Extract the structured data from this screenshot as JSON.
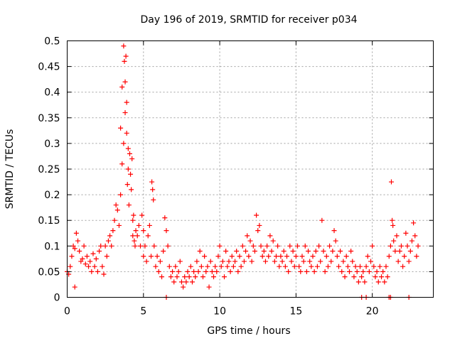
{
  "chart_data": {
    "type": "scatter",
    "title": "Day 196 of 2019, SRMTID for receiver p034",
    "xlabel": "GPS time / hours",
    "ylabel": "SRMTID / TECUs",
    "xlim": [
      0,
      24
    ],
    "ylim": [
      0,
      0.5
    ],
    "x_ticks": [
      0,
      5,
      10,
      15,
      20
    ],
    "x_tick_labels": [
      "0",
      "5",
      "10",
      "15",
      "20"
    ],
    "y_ticks": [
      0,
      0.05,
      0.1,
      0.15,
      0.2,
      0.25,
      0.3,
      0.35,
      0.4,
      0.45,
      0.5
    ],
    "y_tick_labels": [
      "0",
      "0.05",
      "0.1",
      "0.15",
      "0.2",
      "0.25",
      "0.3",
      "0.35",
      "0.4",
      "0.45",
      "0.5"
    ],
    "grid": true,
    "marker": "+",
    "color": "#ff0000",
    "series": [
      {
        "name": "SRMTID",
        "points": [
          [
            0.0,
            0.05
          ],
          [
            0.1,
            0.045
          ],
          [
            0.2,
            0.06
          ],
          [
            0.3,
            0.08
          ],
          [
            0.4,
            0.1
          ],
          [
            0.5,
            0.095
          ],
          [
            0.5,
            0.02
          ],
          [
            0.6,
            0.125
          ],
          [
            0.7,
            0.11
          ],
          [
            0.8,
            0.09
          ],
          [
            0.9,
            0.07
          ],
          [
            1.0,
            0.075
          ],
          [
            1.1,
            0.1
          ],
          [
            1.2,
            0.065
          ],
          [
            1.3,
            0.08
          ],
          [
            1.4,
            0.06
          ],
          [
            1.5,
            0.07
          ],
          [
            1.6,
            0.05
          ],
          [
            1.7,
            0.085
          ],
          [
            1.8,
            0.06
          ],
          [
            1.9,
            0.075
          ],
          [
            2.0,
            0.05
          ],
          [
            2.1,
            0.09
          ],
          [
            2.2,
            0.1
          ],
          [
            2.3,
            0.06
          ],
          [
            2.4,
            0.045
          ],
          [
            2.5,
            0.1
          ],
          [
            2.6,
            0.08
          ],
          [
            2.7,
            0.11
          ],
          [
            2.8,
            0.12
          ],
          [
            2.9,
            0.1
          ],
          [
            3.0,
            0.13
          ],
          [
            3.1,
            0.15
          ],
          [
            3.2,
            0.18
          ],
          [
            3.3,
            0.17
          ],
          [
            3.4,
            0.14
          ],
          [
            3.5,
            0.2
          ],
          [
            3.5,
            0.33
          ],
          [
            3.6,
            0.26
          ],
          [
            3.6,
            0.41
          ],
          [
            3.7,
            0.3
          ],
          [
            3.7,
            0.49
          ],
          [
            3.75,
            0.46
          ],
          [
            3.8,
            0.36
          ],
          [
            3.8,
            0.42
          ],
          [
            3.85,
            0.47
          ],
          [
            3.9,
            0.38
          ],
          [
            3.9,
            0.32
          ],
          [
            3.95,
            0.22
          ],
          [
            4.0,
            0.25
          ],
          [
            4.0,
            0.29
          ],
          [
            4.05,
            0.18
          ],
          [
            4.1,
            0.28
          ],
          [
            4.15,
            0.24
          ],
          [
            4.2,
            0.21
          ],
          [
            4.25,
            0.27
          ],
          [
            4.3,
            0.15
          ],
          [
            4.3,
            0.12
          ],
          [
            4.35,
            0.16
          ],
          [
            4.4,
            0.11
          ],
          [
            4.45,
            0.1
          ],
          [
            4.5,
            0.13
          ],
          [
            4.6,
            0.12
          ],
          [
            4.7,
            0.14
          ],
          [
            4.8,
            0.1
          ],
          [
            4.9,
            0.16
          ],
          [
            5.0,
            0.13
          ],
          [
            5.0,
            0.08
          ],
          [
            5.1,
            0.1
          ],
          [
            5.2,
            0.07
          ],
          [
            5.3,
            0.12
          ],
          [
            5.4,
            0.14
          ],
          [
            5.5,
            0.08
          ],
          [
            5.55,
            0.225
          ],
          [
            5.6,
            0.21
          ],
          [
            5.65,
            0.19
          ],
          [
            5.7,
            0.1
          ],
          [
            5.8,
            0.06
          ],
          [
            5.9,
            0.08
          ],
          [
            6.0,
            0.05
          ],
          [
            6.1,
            0.07
          ],
          [
            6.2,
            0.04
          ],
          [
            6.3,
            0.09
          ],
          [
            6.4,
            0.155
          ],
          [
            6.5,
            0.13
          ],
          [
            6.6,
            0.1
          ],
          [
            6.7,
            0.06
          ],
          [
            6.8,
            0.04
          ],
          [
            6.9,
            0.05
          ],
          [
            7.0,
            0.03
          ],
          [
            7.1,
            0.06
          ],
          [
            7.2,
            0.04
          ],
          [
            7.3,
            0.05
          ],
          [
            7.4,
            0.07
          ],
          [
            7.5,
            0.03
          ],
          [
            7.6,
            0.02
          ],
          [
            7.7,
            0.04
          ],
          [
            7.8,
            0.03
          ],
          [
            7.9,
            0.05
          ],
          [
            8.0,
            0.04
          ],
          [
            8.1,
            0.06
          ],
          [
            8.2,
            0.03
          ],
          [
            8.3,
            0.05
          ],
          [
            8.4,
            0.04
          ],
          [
            8.5,
            0.07
          ],
          [
            8.6,
            0.05
          ],
          [
            8.7,
            0.09
          ],
          [
            8.8,
            0.06
          ],
          [
            8.9,
            0.04
          ],
          [
            9.0,
            0.08
          ],
          [
            9.1,
            0.05
          ],
          [
            9.2,
            0.06
          ],
          [
            9.3,
            0.02
          ],
          [
            9.4,
            0.07
          ],
          [
            9.5,
            0.05
          ],
          [
            9.6,
            0.04
          ],
          [
            9.7,
            0.06
          ],
          [
            9.8,
            0.05
          ],
          [
            9.9,
            0.08
          ],
          [
            10.0,
            0.1
          ],
          [
            10.1,
            0.06
          ],
          [
            10.2,
            0.07
          ],
          [
            10.3,
            0.04
          ],
          [
            10.4,
            0.09
          ],
          [
            10.5,
            0.06
          ],
          [
            10.6,
            0.07
          ],
          [
            10.7,
            0.05
          ],
          [
            10.8,
            0.08
          ],
          [
            10.9,
            0.06
          ],
          [
            11.0,
            0.07
          ],
          [
            11.1,
            0.09
          ],
          [
            11.2,
            0.05
          ],
          [
            11.3,
            0.08
          ],
          [
            11.4,
            0.06
          ],
          [
            11.5,
            0.1
          ],
          [
            11.6,
            0.07
          ],
          [
            11.7,
            0.09
          ],
          [
            11.8,
            0.12
          ],
          [
            11.9,
            0.08
          ],
          [
            12.0,
            0.11
          ],
          [
            12.1,
            0.07
          ],
          [
            12.2,
            0.1
          ],
          [
            12.3,
            0.09
          ],
          [
            12.4,
            0.16
          ],
          [
            12.5,
            0.13
          ],
          [
            12.6,
            0.14
          ],
          [
            12.7,
            0.1
          ],
          [
            12.8,
            0.08
          ],
          [
            12.9,
            0.09
          ],
          [
            13.0,
            0.07
          ],
          [
            13.1,
            0.1
          ],
          [
            13.2,
            0.08
          ],
          [
            13.3,
            0.12
          ],
          [
            13.4,
            0.09
          ],
          [
            13.5,
            0.11
          ],
          [
            13.6,
            0.07
          ],
          [
            13.7,
            0.08
          ],
          [
            13.8,
            0.1
          ],
          [
            13.9,
            0.06
          ],
          [
            14.0,
            0.08
          ],
          [
            14.1,
            0.07
          ],
          [
            14.2,
            0.09
          ],
          [
            14.3,
            0.06
          ],
          [
            14.4,
            0.08
          ],
          [
            14.5,
            0.05
          ],
          [
            14.6,
            0.1
          ],
          [
            14.7,
            0.07
          ],
          [
            14.8,
            0.09
          ],
          [
            14.9,
            0.06
          ],
          [
            15.0,
            0.08
          ],
          [
            15.1,
            0.1
          ],
          [
            15.2,
            0.06
          ],
          [
            15.3,
            0.05
          ],
          [
            15.4,
            0.08
          ],
          [
            15.5,
            0.07
          ],
          [
            15.6,
            0.1
          ],
          [
            15.7,
            0.05
          ],
          [
            15.8,
            0.09
          ],
          [
            15.9,
            0.07
          ],
          [
            16.0,
            0.06
          ],
          [
            16.1,
            0.08
          ],
          [
            16.2,
            0.05
          ],
          [
            16.3,
            0.09
          ],
          [
            16.4,
            0.06
          ],
          [
            16.5,
            0.1
          ],
          [
            16.6,
            0.07
          ],
          [
            16.7,
            0.15
          ],
          [
            16.8,
            0.09
          ],
          [
            16.9,
            0.05
          ],
          [
            17.0,
            0.08
          ],
          [
            17.1,
            0.06
          ],
          [
            17.2,
            0.1
          ],
          [
            17.3,
            0.07
          ],
          [
            17.4,
            0.09
          ],
          [
            17.5,
            0.13
          ],
          [
            17.6,
            0.11
          ],
          [
            17.7,
            0.08
          ],
          [
            17.8,
            0.06
          ],
          [
            17.9,
            0.09
          ],
          [
            18.0,
            0.05
          ],
          [
            18.1,
            0.07
          ],
          [
            18.2,
            0.04
          ],
          [
            18.3,
            0.08
          ],
          [
            18.4,
            0.06
          ],
          [
            18.5,
            0.05
          ],
          [
            18.6,
            0.09
          ],
          [
            18.7,
            0.07
          ],
          [
            18.8,
            0.04
          ],
          [
            18.9,
            0.06
          ],
          [
            19.0,
            0.05
          ],
          [
            19.1,
            0.03
          ],
          [
            19.2,
            0.06
          ],
          [
            19.3,
            0.04
          ],
          [
            19.4,
            0.05
          ],
          [
            19.5,
            0.03
          ],
          [
            19.6,
            0.06
          ],
          [
            19.7,
            0.08
          ],
          [
            19.8,
            0.05
          ],
          [
            19.9,
            0.07
          ],
          [
            20.0,
            0.1
          ],
          [
            20.1,
            0.06
          ],
          [
            20.2,
            0.04
          ],
          [
            20.3,
            0.05
          ],
          [
            20.4,
            0.03
          ],
          [
            20.5,
            0.06
          ],
          [
            20.6,
            0.04
          ],
          [
            20.7,
            0.05
          ],
          [
            20.8,
            0.03
          ],
          [
            20.9,
            0.06
          ],
          [
            21.0,
            0.04
          ],
          [
            21.1,
            0.08
          ],
          [
            21.2,
            0.1
          ],
          [
            21.25,
            0.225
          ],
          [
            21.3,
            0.15
          ],
          [
            21.35,
            0.14
          ],
          [
            21.4,
            0.11
          ],
          [
            21.5,
            0.09
          ],
          [
            21.6,
            0.12
          ],
          [
            21.7,
            0.07
          ],
          [
            21.8,
            0.09
          ],
          [
            21.9,
            0.1
          ],
          [
            22.0,
            0.06
          ],
          [
            22.1,
            0.08
          ],
          [
            22.2,
            0.125
          ],
          [
            22.3,
            0.1
          ],
          [
            22.4,
            0.07
          ],
          [
            22.5,
            0.09
          ],
          [
            22.6,
            0.11
          ],
          [
            22.7,
            0.145
          ],
          [
            22.8,
            0.12
          ],
          [
            22.9,
            0.08
          ],
          [
            23.0,
            0.1
          ],
          [
            6.5,
            0.0
          ],
          [
            19.3,
            0.0
          ],
          [
            19.6,
            0.0
          ],
          [
            21.1,
            0.0
          ],
          [
            21.2,
            0.0
          ],
          [
            22.4,
            0.0
          ]
        ]
      }
    ]
  }
}
